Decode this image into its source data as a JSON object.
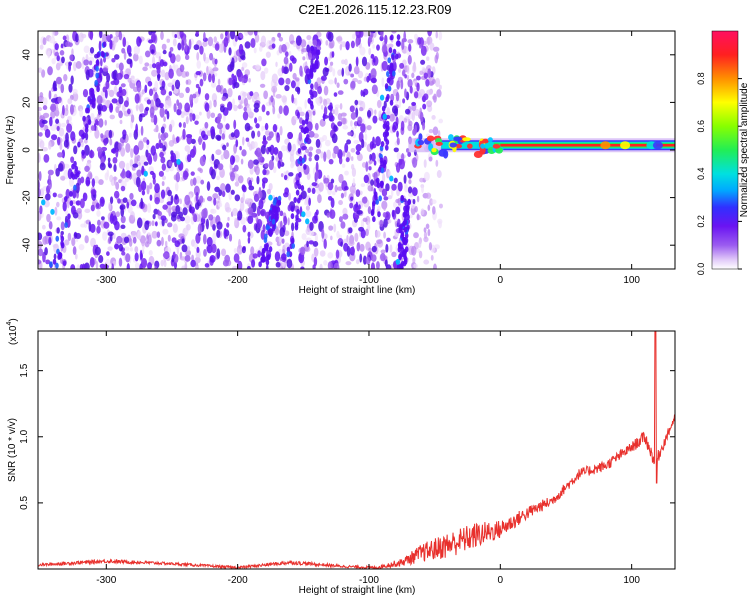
{
  "page_title": "C2E1.2026.115.12.23.R09",
  "chart_data": [
    {
      "type": "heatmap",
      "xlabel": "Height of straight line (km)",
      "ylabel": "Frequency (Hz)",
      "xlim": [
        -352,
        133
      ],
      "ylim": [
        -50,
        50
      ],
      "xticks": [
        -300,
        -200,
        -100,
        0,
        100
      ],
      "yticks": [
        -40,
        -20,
        0,
        20,
        40
      ],
      "xtick_labels": [
        "-300",
        "-200",
        "-100",
        "0",
        "100"
      ],
      "ytick_labels": [
        "-40",
        "-20",
        "0",
        "20",
        "40"
      ],
      "colorbar": {
        "label": "Normalized spectral amplitude",
        "range": [
          0,
          1
        ],
        "ticks": [
          0.0,
          0.2,
          0.4,
          0.6,
          0.8
        ],
        "tick_labels": [
          "0.0",
          "0.2",
          "0.4",
          "0.6",
          "0.8"
        ],
        "colors": [
          "#ffffff",
          "#e0c8f8",
          "#9b5cf0",
          "#6a14f2",
          "#3030ff",
          "#00a8ff",
          "#00e0e0",
          "#22ee55",
          "#88ff00",
          "#ffff00",
          "#ff9000",
          "#ff2020",
          "#ff1060"
        ]
      },
      "features": {
        "noise_region_x": [
          -352,
          -60
        ],
        "carrier_frequency_hz": 2,
        "carrier_x_range": [
          -45,
          133
        ]
      }
    },
    {
      "type": "line",
      "series": [
        {
          "name": "SNR",
          "color": "#e8302c"
        }
      ],
      "xlabel": "Height of straight line (km)",
      "ylabel": "SNR (10 * v/v)",
      "scale_note_base": "(x10",
      "scale_note_exp": "4",
      "scale_note_close": ")",
      "xlim": [
        -352,
        133
      ],
      "ylim": [
        0,
        1.8
      ],
      "xticks": [
        -300,
        -200,
        -100,
        0,
        100
      ],
      "yticks": [
        0.5,
        1.0,
        1.5
      ],
      "xtick_labels": [
        "-300",
        "-200",
        "-100",
        "0",
        "100"
      ],
      "ytick_labels": [
        "0.5",
        "1.0",
        "1.5"
      ],
      "profile_x": [
        -352,
        -300,
        -250,
        -200,
        -160,
        -120,
        -95,
        -75,
        -60,
        -40,
        -20,
        0,
        20,
        40,
        60,
        80,
        100,
        110,
        118,
        133
      ],
      "profile_y": [
        0.03,
        0.06,
        0.04,
        0.01,
        0.05,
        0.02,
        0.01,
        0.05,
        0.12,
        0.18,
        0.25,
        0.3,
        0.42,
        0.52,
        0.72,
        0.78,
        0.92,
        1.0,
        0.8,
        1.15
      ],
      "noise_amp": [
        0.01,
        0.015,
        0.01,
        0.01,
        0.015,
        0.01,
        0.01,
        0.03,
        0.07,
        0.1,
        0.1,
        0.07,
        0.05,
        0.04,
        0.04,
        0.04,
        0.04,
        0.05,
        0.05,
        0.03
      ],
      "spike": {
        "x": 118,
        "y": 1.8
      },
      "dip": {
        "x": 119,
        "y": 0.65
      }
    }
  ]
}
